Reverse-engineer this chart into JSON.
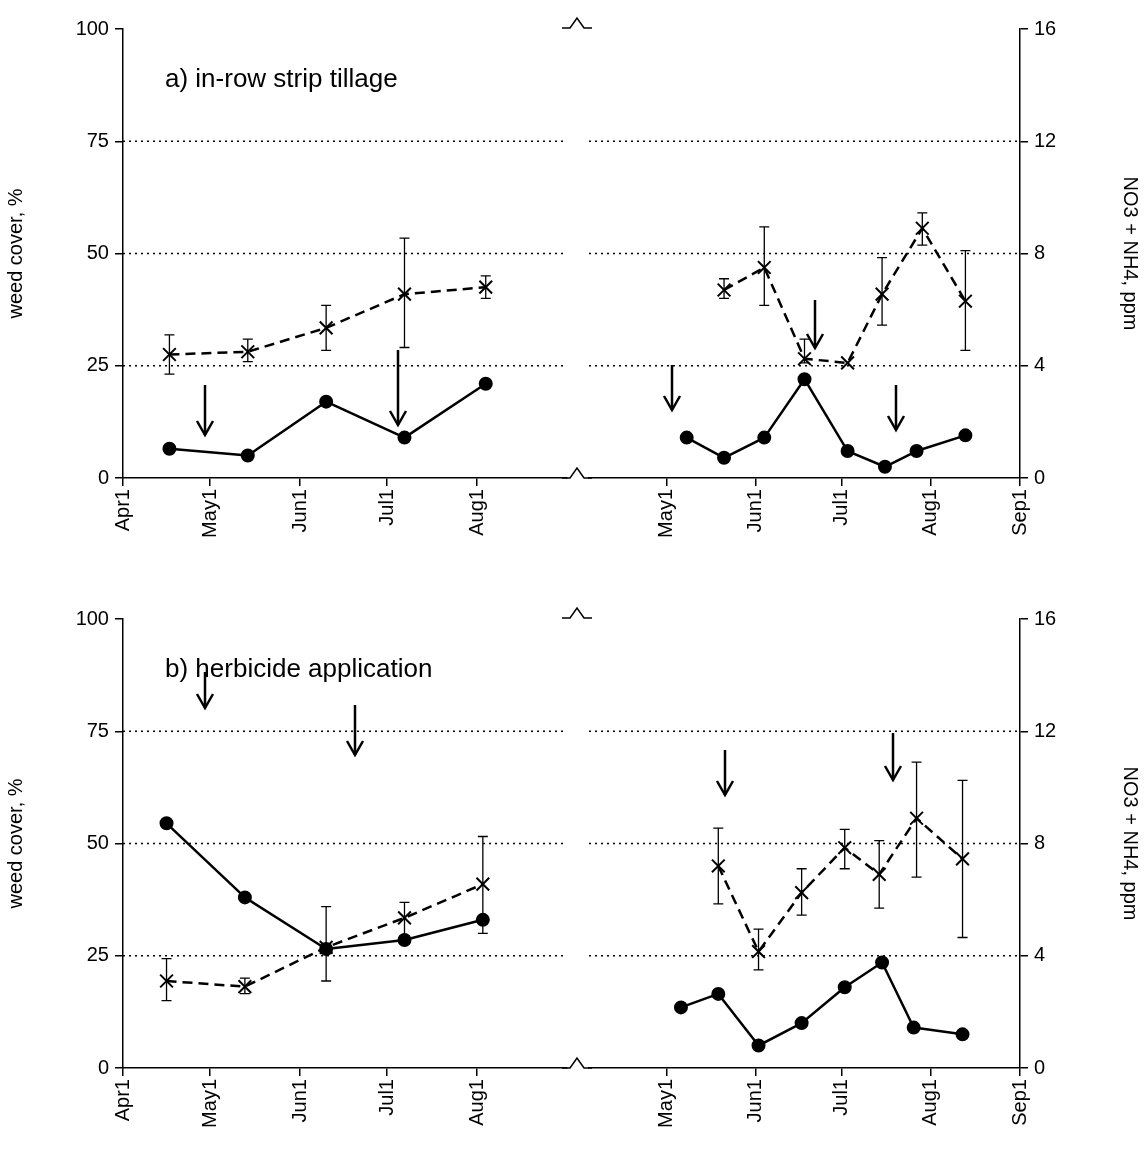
{
  "chart_data": [
    {
      "type": "line",
      "title": "a) in-row strip tillage",
      "ylabel": "weed cover, %",
      "xlim": [
        "--04-01",
        "--09-01"
      ],
      "xticks": [
        {
          "value": "--04-01",
          "label": "Apr1"
        },
        {
          "value": "--05-01",
          "label": "May1"
        },
        {
          "value": "--06-01",
          "label": "Jun1"
        },
        {
          "value": "--07-01",
          "label": "Jul1"
        },
        {
          "value": "--08-01",
          "label": "Aug1"
        }
      ],
      "ylim": [
        0,
        100
      ],
      "yticks": [
        0,
        25,
        50,
        75,
        100
      ],
      "y2lim": [
        0,
        16
      ],
      "grid": "y",
      "legend": false,
      "series": [
        {
          "type": "line",
          "color": "#000000",
          "marker": "circle",
          "line_style": "solid",
          "x": [
            "--04-17",
            "--05-14",
            "--06-10",
            "--07-07",
            "--08-04"
          ],
          "values": [
            6.5,
            5,
            17,
            9,
            21
          ]
        },
        {
          "type": "line",
          "axis": "y2",
          "color": "#000000",
          "marker": "cross",
          "line_style": "dashed",
          "x": [
            "--04-17",
            "--05-14",
            "--06-10",
            "--07-07",
            "--08-04"
          ],
          "values": [
            4.4,
            4.5,
            5.35,
            6.55,
            6.8
          ],
          "errors": [
            [
              3.7,
              5.1
            ],
            [
              4.15,
              4.95
            ],
            [
              4.55,
              6.15
            ],
            [
              4.65,
              8.55
            ],
            [
              6.4,
              7.2
            ]
          ]
        }
      ]
    },
    {
      "type": "line",
      "y2label": "NO3 + NH4, ppm",
      "xlim": [
        "--04-04",
        "--09-01"
      ],
      "xticks": [
        {
          "value": "--05-01",
          "label": "May1"
        },
        {
          "value": "--06-01",
          "label": "Jun1"
        },
        {
          "value": "--07-01",
          "label": "Jul1"
        },
        {
          "value": "--08-01",
          "label": "Aug1"
        },
        {
          "value": "--09-01",
          "label": "Sep1"
        }
      ],
      "ylim": [
        0,
        100
      ],
      "y2lim": [
        0,
        16
      ],
      "y2ticks": [
        0,
        4,
        8,
        12,
        16
      ],
      "grid": "y",
      "legend": false,
      "series": [
        {
          "type": "line",
          "color": "#000000",
          "marker": "circle",
          "line_style": "solid",
          "x": [
            "--05-08",
            "--05-21",
            "--06-04",
            "--06-18",
            "--07-03",
            "--07-16",
            "--07-27",
            "--08-13"
          ],
          "values": [
            9,
            4.5,
            9,
            22,
            6,
            2.5,
            6,
            9.5
          ]
        },
        {
          "type": "line",
          "axis": "y2",
          "color": "#000000",
          "marker": "cross",
          "line_style": "dashed",
          "x": [
            "--05-21",
            "--06-04",
            "--06-18",
            "--07-03",
            "--07-15",
            "--07-29",
            "--08-13"
          ],
          "values": [
            6.7,
            7.5,
            4.25,
            4.1,
            6.55,
            8.9,
            6.3
          ],
          "errors": [
            [
              6.4,
              7.1
            ],
            [
              6.15,
              8.95
            ],
            [
              4.1,
              4.95
            ],
            null,
            [
              5.45,
              7.85
            ],
            [
              8.3,
              9.45
            ],
            [
              4.55,
              8.1
            ]
          ]
        }
      ]
    },
    {
      "type": "line",
      "title": "b) herbicide application",
      "ylabel": "weed cover, %",
      "xlim": [
        "--04-01",
        "--09-01"
      ],
      "xticks": [
        {
          "value": "--04-01",
          "label": "Apr1"
        },
        {
          "value": "--05-01",
          "label": "May1"
        },
        {
          "value": "--06-01",
          "label": "Jun1"
        },
        {
          "value": "--07-01",
          "label": "Jul1"
        },
        {
          "value": "--08-01",
          "label": "Aug1"
        }
      ],
      "ylim": [
        0,
        100
      ],
      "yticks": [
        0,
        25,
        50,
        75,
        100
      ],
      "y2lim": [
        0,
        16
      ],
      "grid": "y",
      "legend": false,
      "series": [
        {
          "type": "line",
          "color": "#000000",
          "marker": "circle",
          "line_style": "solid",
          "x": [
            "--04-16",
            "--05-13",
            "--06-10",
            "--07-07",
            "--08-03"
          ],
          "values": [
            54.5,
            38,
            26.5,
            28.5,
            33
          ]
        },
        {
          "type": "line",
          "axis": "y2",
          "color": "#000000",
          "marker": "cross",
          "line_style": "dashed",
          "x": [
            "--04-16",
            "--05-13",
            "--06-10",
            "--07-07",
            "--08-03"
          ],
          "values": [
            3.1,
            2.9,
            4.3,
            5.35,
            6.55
          ],
          "errors": [
            [
              2.4,
              3.9
            ],
            [
              2.65,
              3.2
            ],
            [
              3.1,
              5.75
            ],
            [
              4.7,
              5.9
            ],
            [
              4.8,
              8.25
            ]
          ]
        }
      ]
    },
    {
      "type": "line",
      "y2label": "NO3 + NH4, ppm",
      "xlim": [
        "--04-04",
        "--09-01"
      ],
      "xticks": [
        {
          "value": "--05-01",
          "label": "May1"
        },
        {
          "value": "--06-01",
          "label": "Jun1"
        },
        {
          "value": "--07-01",
          "label": "Jul1"
        },
        {
          "value": "--08-01",
          "label": "Aug1"
        },
        {
          "value": "--09-01",
          "label": "Sep1"
        }
      ],
      "ylim": [
        0,
        100
      ],
      "y2lim": [
        0,
        16
      ],
      "y2ticks": [
        0,
        4,
        8,
        12,
        16
      ],
      "grid": "y",
      "legend": false,
      "series": [
        {
          "type": "line",
          "color": "#000000",
          "marker": "circle",
          "line_style": "solid",
          "x": [
            "--05-06",
            "--05-19",
            "--06-02",
            "--06-17",
            "--07-02",
            "--07-15",
            "--07-26",
            "--08-12"
          ],
          "values": [
            13.5,
            16.5,
            5,
            10,
            18,
            23.5,
            9,
            7.5
          ]
        },
        {
          "type": "line",
          "axis": "y2",
          "color": "#000000",
          "marker": "cross",
          "line_style": "dashed",
          "x": [
            "--05-19",
            "--06-02",
            "--06-17",
            "--07-02",
            "--07-14",
            "--07-27",
            "--08-12"
          ],
          "values": [
            7.2,
            4.15,
            6.25,
            7.85,
            6.9,
            8.9,
            7.45
          ],
          "errors": [
            [
              5.85,
              8.55
            ],
            [
              3.5,
              4.95
            ],
            [
              5.45,
              7.1
            ],
            [
              7.1,
              8.5
            ],
            [
              5.7,
              8.1
            ],
            [
              6.8,
              10.9
            ],
            [
              4.65,
              10.25
            ]
          ]
        }
      ]
    }
  ]
}
